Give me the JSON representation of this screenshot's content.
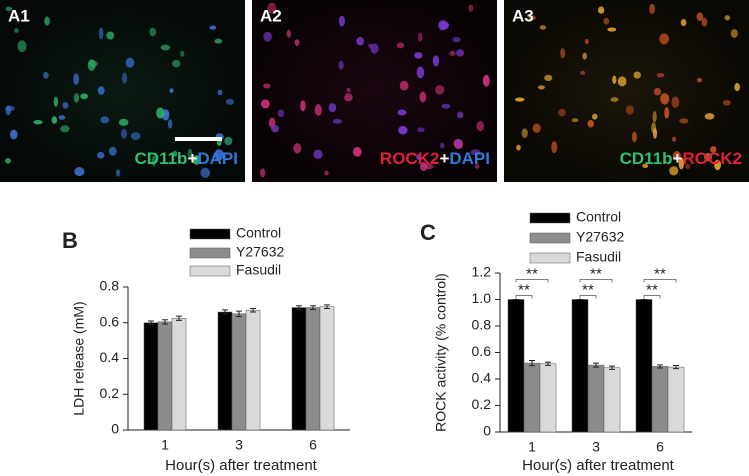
{
  "image_panels": [
    {
      "label": "A1",
      "caption": [
        "CD11b",
        "+",
        "DAPI"
      ]
    },
    {
      "label": "A2",
      "caption": [
        "ROCK2",
        "+",
        "DAPI"
      ]
    },
    {
      "label": "A3",
      "caption": [
        "CD11b",
        "+",
        "ROCK2"
      ]
    }
  ],
  "chart_data": [
    {
      "type": "bar",
      "panel": "B",
      "x_label": "Hour(s) after treatment",
      "y_label": "LDH release (mM)",
      "categories": [
        "1",
        "3",
        "6"
      ],
      "series": [
        {
          "name": "Control",
          "color": "#000000",
          "values": [
            0.6,
            0.66,
            0.685
          ],
          "errors": [
            0.01,
            0.012,
            0.01
          ]
        },
        {
          "name": "Y27632",
          "color": "#8c8c8c",
          "values": [
            0.605,
            0.65,
            0.685
          ],
          "errors": [
            0.012,
            0.015,
            0.01
          ]
        },
        {
          "name": "Fasudil",
          "color": "#d9d9d9",
          "values": [
            0.625,
            0.67,
            0.69
          ],
          "errors": [
            0.012,
            0.01,
            0.01
          ]
        }
      ],
      "ylim": [
        0,
        0.8
      ],
      "yticks": [
        0,
        0.2,
        0.4,
        0.6,
        0.8
      ]
    },
    {
      "type": "bar",
      "panel": "C",
      "x_label": "Hour(s) after treatment",
      "y_label": "ROCK activity (% control)",
      "categories": [
        "1",
        "3",
        "6"
      ],
      "series": [
        {
          "name": "Control",
          "color": "#000000",
          "values": [
            1,
            1,
            1
          ],
          "errors": [
            0,
            0,
            0
          ]
        },
        {
          "name": "Y27632",
          "color": "#8c8c8c",
          "values": [
            0.52,
            0.505,
            0.495
          ],
          "errors": [
            0.02,
            0.015,
            0.012
          ]
        },
        {
          "name": "Fasudil",
          "color": "#d9d9d9",
          "values": [
            0.515,
            0.485,
            0.49
          ],
          "errors": [
            0.012,
            0.012,
            0.012
          ]
        }
      ],
      "annotations": [
        "**",
        "**",
        "**",
        "**",
        "**",
        "**"
      ],
      "ylim": [
        0,
        1.2
      ],
      "yticks": [
        0,
        0.2,
        0.4,
        0.6,
        0.8,
        {
          "value": 1,
          "label": "1.0"
        },
        1.2
      ]
    }
  ]
}
